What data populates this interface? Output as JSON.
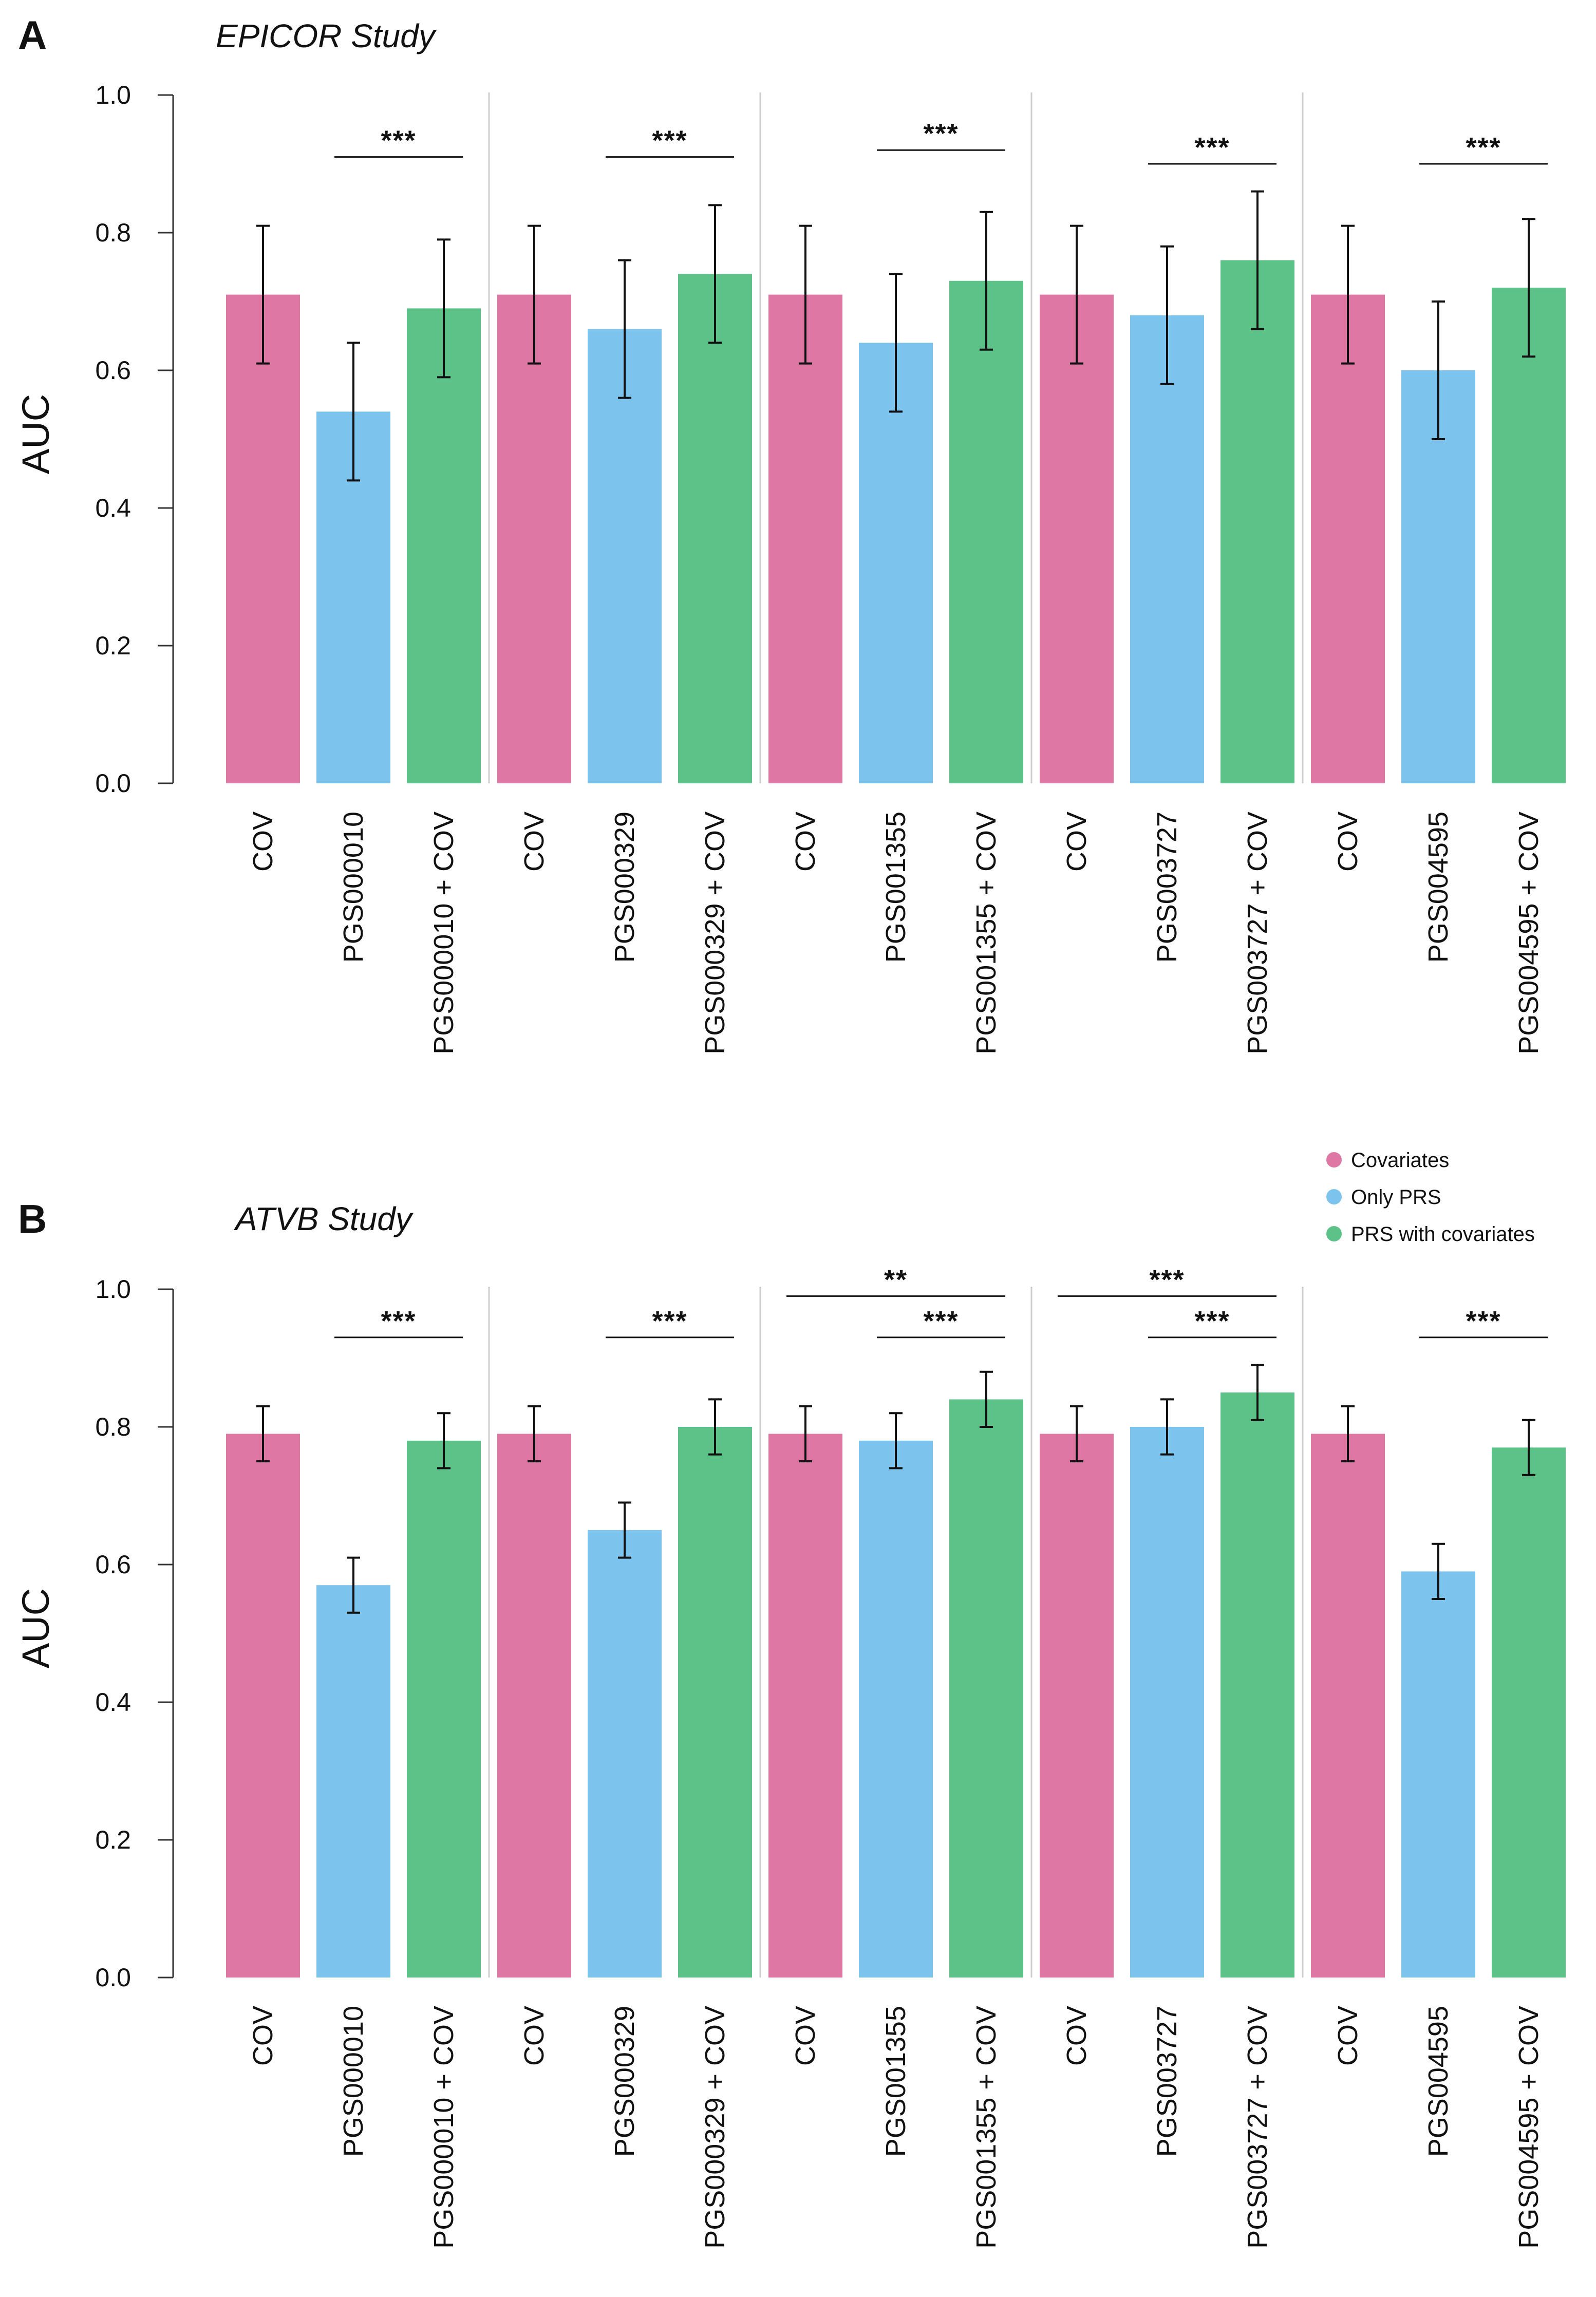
{
  "colors": {
    "covariates": "#df77a4",
    "only_prs": "#7cc3ee",
    "prs_with_covariates": "#5dc287",
    "separator": "#cccccc",
    "axis": "#333333",
    "errorbar": "#111111"
  },
  "legend": {
    "items": [
      {
        "label": "Covariates",
        "color": "#df77a4"
      },
      {
        "label": "Only PRS",
        "color": "#7cc3ee"
      },
      {
        "label": "PRS with covariates",
        "color": "#5dc287"
      }
    ]
  },
  "chart_data": [
    {
      "type": "bar",
      "panel": "A",
      "title": "EPICOR Study",
      "ylabel": "AUC",
      "ylim": [
        0,
        1
      ],
      "yticks": [
        "0.0",
        "0.2",
        "0.4",
        "0.6",
        "0.8",
        "1.0"
      ],
      "groups": [
        {
          "bars": [
            {
              "label": "COV",
              "series": "covariates",
              "value": 0.71,
              "lo": 0.61,
              "hi": 0.81
            },
            {
              "label": "PGS000010",
              "series": "only_prs",
              "value": 0.54,
              "lo": 0.44,
              "hi": 0.64
            },
            {
              "label": "PGS000010 + COV",
              "series": "prs_with_covariates",
              "value": 0.69,
              "lo": 0.59,
              "hi": 0.79
            }
          ],
          "significance": [
            {
              "from": 1,
              "to": 2,
              "label": "***",
              "level": 0.91
            }
          ]
        },
        {
          "bars": [
            {
              "label": "COV",
              "series": "covariates",
              "value": 0.71,
              "lo": 0.61,
              "hi": 0.81
            },
            {
              "label": "PGS000329",
              "series": "only_prs",
              "value": 0.66,
              "lo": 0.56,
              "hi": 0.76
            },
            {
              "label": "PGS000329 + COV",
              "series": "prs_with_covariates",
              "value": 0.74,
              "lo": 0.64,
              "hi": 0.84
            }
          ],
          "significance": [
            {
              "from": 1,
              "to": 2,
              "label": "***",
              "level": 0.91
            }
          ]
        },
        {
          "bars": [
            {
              "label": "COV",
              "series": "covariates",
              "value": 0.71,
              "lo": 0.61,
              "hi": 0.81
            },
            {
              "label": "PGS001355",
              "series": "only_prs",
              "value": 0.64,
              "lo": 0.54,
              "hi": 0.74
            },
            {
              "label": "PGS001355 + COV",
              "series": "prs_with_covariates",
              "value": 0.73,
              "lo": 0.63,
              "hi": 0.83
            }
          ],
          "significance": [
            {
              "from": 1,
              "to": 2,
              "label": "***",
              "level": 0.92
            }
          ]
        },
        {
          "bars": [
            {
              "label": "COV",
              "series": "covariates",
              "value": 0.71,
              "lo": 0.61,
              "hi": 0.81
            },
            {
              "label": "PGS003727",
              "series": "only_prs",
              "value": 0.68,
              "lo": 0.58,
              "hi": 0.78
            },
            {
              "label": "PGS003727 + COV",
              "series": "prs_with_covariates",
              "value": 0.76,
              "lo": 0.66,
              "hi": 0.86
            }
          ],
          "significance": [
            {
              "from": 1,
              "to": 2,
              "label": "***",
              "level": 0.9
            }
          ]
        },
        {
          "bars": [
            {
              "label": "COV",
              "series": "covariates",
              "value": 0.71,
              "lo": 0.61,
              "hi": 0.81
            },
            {
              "label": "PGS004595",
              "series": "only_prs",
              "value": 0.6,
              "lo": 0.5,
              "hi": 0.7
            },
            {
              "label": "PGS004595 + COV",
              "series": "prs_with_covariates",
              "value": 0.72,
              "lo": 0.62,
              "hi": 0.82
            }
          ],
          "significance": [
            {
              "from": 1,
              "to": 2,
              "label": "***",
              "level": 0.9
            }
          ]
        }
      ]
    },
    {
      "type": "bar",
      "panel": "B",
      "title": "ATVB Study",
      "ylabel": "AUC",
      "ylim": [
        0,
        1
      ],
      "yticks": [
        "0.0",
        "0.2",
        "0.4",
        "0.6",
        "0.8",
        "1.0"
      ],
      "groups": [
        {
          "bars": [
            {
              "label": "COV",
              "series": "covariates",
              "value": 0.79,
              "lo": 0.75,
              "hi": 0.83
            },
            {
              "label": "PGS000010",
              "series": "only_prs",
              "value": 0.57,
              "lo": 0.53,
              "hi": 0.61
            },
            {
              "label": "PGS000010 + COV",
              "series": "prs_with_covariates",
              "value": 0.78,
              "lo": 0.74,
              "hi": 0.82
            }
          ],
          "significance": [
            {
              "from": 1,
              "to": 2,
              "label": "***",
              "level": 0.93
            }
          ]
        },
        {
          "bars": [
            {
              "label": "COV",
              "series": "covariates",
              "value": 0.79,
              "lo": 0.75,
              "hi": 0.83
            },
            {
              "label": "PGS000329",
              "series": "only_prs",
              "value": 0.65,
              "lo": 0.61,
              "hi": 0.69
            },
            {
              "label": "PGS000329 + COV",
              "series": "prs_with_covariates",
              "value": 0.8,
              "lo": 0.76,
              "hi": 0.84
            }
          ],
          "significance": [
            {
              "from": 1,
              "to": 2,
              "label": "***",
              "level": 0.93
            }
          ]
        },
        {
          "bars": [
            {
              "label": "COV",
              "series": "covariates",
              "value": 0.79,
              "lo": 0.75,
              "hi": 0.83
            },
            {
              "label": "PGS001355",
              "series": "only_prs",
              "value": 0.78,
              "lo": 0.74,
              "hi": 0.82
            },
            {
              "label": "PGS001355 + COV",
              "series": "prs_with_covariates",
              "value": 0.84,
              "lo": 0.8,
              "hi": 0.88
            }
          ],
          "significance": [
            {
              "from": 0,
              "to": 2,
              "label": "**",
              "level": 0.99
            },
            {
              "from": 1,
              "to": 2,
              "label": "***",
              "level": 0.93
            }
          ]
        },
        {
          "bars": [
            {
              "label": "COV",
              "series": "covariates",
              "value": 0.79,
              "lo": 0.75,
              "hi": 0.83
            },
            {
              "label": "PGS003727",
              "series": "only_prs",
              "value": 0.8,
              "lo": 0.76,
              "hi": 0.84
            },
            {
              "label": "PGS003727 + COV",
              "series": "prs_with_covariates",
              "value": 0.85,
              "lo": 0.81,
              "hi": 0.89
            }
          ],
          "significance": [
            {
              "from": 0,
              "to": 2,
              "label": "***",
              "level": 0.99
            },
            {
              "from": 1,
              "to": 2,
              "label": "***",
              "level": 0.93
            }
          ]
        },
        {
          "bars": [
            {
              "label": "COV",
              "series": "covariates",
              "value": 0.79,
              "lo": 0.75,
              "hi": 0.83
            },
            {
              "label": "PGS004595",
              "series": "only_prs",
              "value": 0.59,
              "lo": 0.55,
              "hi": 0.63
            },
            {
              "label": "PGS004595 + COV",
              "series": "prs_with_covariates",
              "value": 0.77,
              "lo": 0.73,
              "hi": 0.81
            }
          ],
          "significance": [
            {
              "from": 1,
              "to": 2,
              "label": "***",
              "level": 0.93
            }
          ]
        }
      ]
    }
  ]
}
